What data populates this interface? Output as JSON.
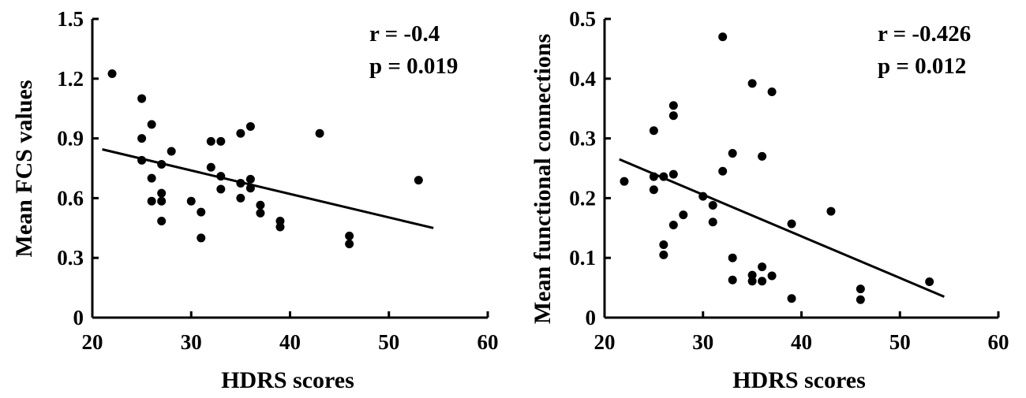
{
  "chart_data": [
    {
      "type": "scatter",
      "title": "",
      "xlabel": "HDRS  scores",
      "ylabel": "Mean FCS values",
      "xlim": [
        20,
        60
      ],
      "ylim": [
        0,
        1.5
      ],
      "xticks": [
        "20",
        "30",
        "40",
        "50",
        "60"
      ],
      "yticks": [
        "0",
        "0.3",
        "0.6",
        "0.9",
        "1.2",
        "1.5"
      ],
      "annotations": [
        "r = -0.4",
        "p = 0.019"
      ],
      "grid": false,
      "points": [
        {
          "x": 22,
          "y": 1.225
        },
        {
          "x": 25,
          "y": 1.1
        },
        {
          "x": 25,
          "y": 0.9
        },
        {
          "x": 25,
          "y": 0.79
        },
        {
          "x": 26,
          "y": 0.97
        },
        {
          "x": 26,
          "y": 0.7
        },
        {
          "x": 26,
          "y": 0.585
        },
        {
          "x": 27,
          "y": 0.77
        },
        {
          "x": 27,
          "y": 0.625
        },
        {
          "x": 27,
          "y": 0.585
        },
        {
          "x": 27,
          "y": 0.485
        },
        {
          "x": 28,
          "y": 0.835
        },
        {
          "x": 30,
          "y": 0.585
        },
        {
          "x": 31,
          "y": 0.53
        },
        {
          "x": 31,
          "y": 0.4
        },
        {
          "x": 32,
          "y": 0.885
        },
        {
          "x": 32,
          "y": 0.755
        },
        {
          "x": 33,
          "y": 0.885
        },
        {
          "x": 33,
          "y": 0.71
        },
        {
          "x": 33,
          "y": 0.645
        },
        {
          "x": 35,
          "y": 0.925
        },
        {
          "x": 35,
          "y": 0.675
        },
        {
          "x": 35,
          "y": 0.6
        },
        {
          "x": 36,
          "y": 0.96
        },
        {
          "x": 36,
          "y": 0.695
        },
        {
          "x": 36,
          "y": 0.65
        },
        {
          "x": 37,
          "y": 0.565
        },
        {
          "x": 37,
          "y": 0.525
        },
        {
          "x": 39,
          "y": 0.485
        },
        {
          "x": 39,
          "y": 0.455
        },
        {
          "x": 43,
          "y": 0.925
        },
        {
          "x": 46,
          "y": 0.41
        },
        {
          "x": 46,
          "y": 0.37
        },
        {
          "x": 53,
          "y": 0.69
        }
      ],
      "fit_line": [
        {
          "x": 21,
          "y": 0.845
        },
        {
          "x": 54.5,
          "y": 0.45
        }
      ]
    },
    {
      "type": "scatter",
      "title": "",
      "xlabel": "HDRS  scores",
      "ylabel": "Mean functional connections",
      "xlim": [
        20,
        60
      ],
      "ylim": [
        0,
        0.5
      ],
      "xticks": [
        "20",
        "30",
        "40",
        "50",
        "60"
      ],
      "yticks": [
        "0",
        "0.1",
        "0.2",
        "0.3",
        "0.4",
        "0.5"
      ],
      "annotations": [
        "r = -0.426",
        "p = 0.012"
      ],
      "grid": false,
      "points": [
        {
          "x": 22,
          "y": 0.228
        },
        {
          "x": 25,
          "y": 0.313
        },
        {
          "x": 25,
          "y": 0.236
        },
        {
          "x": 25,
          "y": 0.214
        },
        {
          "x": 26,
          "y": 0.236
        },
        {
          "x": 26,
          "y": 0.122
        },
        {
          "x": 26,
          "y": 0.105
        },
        {
          "x": 27,
          "y": 0.355
        },
        {
          "x": 27,
          "y": 0.338
        },
        {
          "x": 27,
          "y": 0.24
        },
        {
          "x": 27,
          "y": 0.155
        },
        {
          "x": 28,
          "y": 0.172
        },
        {
          "x": 30,
          "y": 0.203
        },
        {
          "x": 31,
          "y": 0.188
        },
        {
          "x": 31,
          "y": 0.16
        },
        {
          "x": 32,
          "y": 0.47
        },
        {
          "x": 32,
          "y": 0.245
        },
        {
          "x": 33,
          "y": 0.275
        },
        {
          "x": 33,
          "y": 0.1
        },
        {
          "x": 33,
          "y": 0.063
        },
        {
          "x": 35,
          "y": 0.392
        },
        {
          "x": 35,
          "y": 0.071
        },
        {
          "x": 35,
          "y": 0.061
        },
        {
          "x": 36,
          "y": 0.27
        },
        {
          "x": 36,
          "y": 0.085
        },
        {
          "x": 36,
          "y": 0.061
        },
        {
          "x": 37,
          "y": 0.378
        },
        {
          "x": 37,
          "y": 0.07
        },
        {
          "x": 39,
          "y": 0.157
        },
        {
          "x": 39,
          "y": 0.032
        },
        {
          "x": 43,
          "y": 0.178
        },
        {
          "x": 46,
          "y": 0.048
        },
        {
          "x": 46,
          "y": 0.03
        },
        {
          "x": 53,
          "y": 0.06
        }
      ],
      "fit_line": [
        {
          "x": 21.5,
          "y": 0.265
        },
        {
          "x": 54.5,
          "y": 0.035
        }
      ]
    }
  ]
}
